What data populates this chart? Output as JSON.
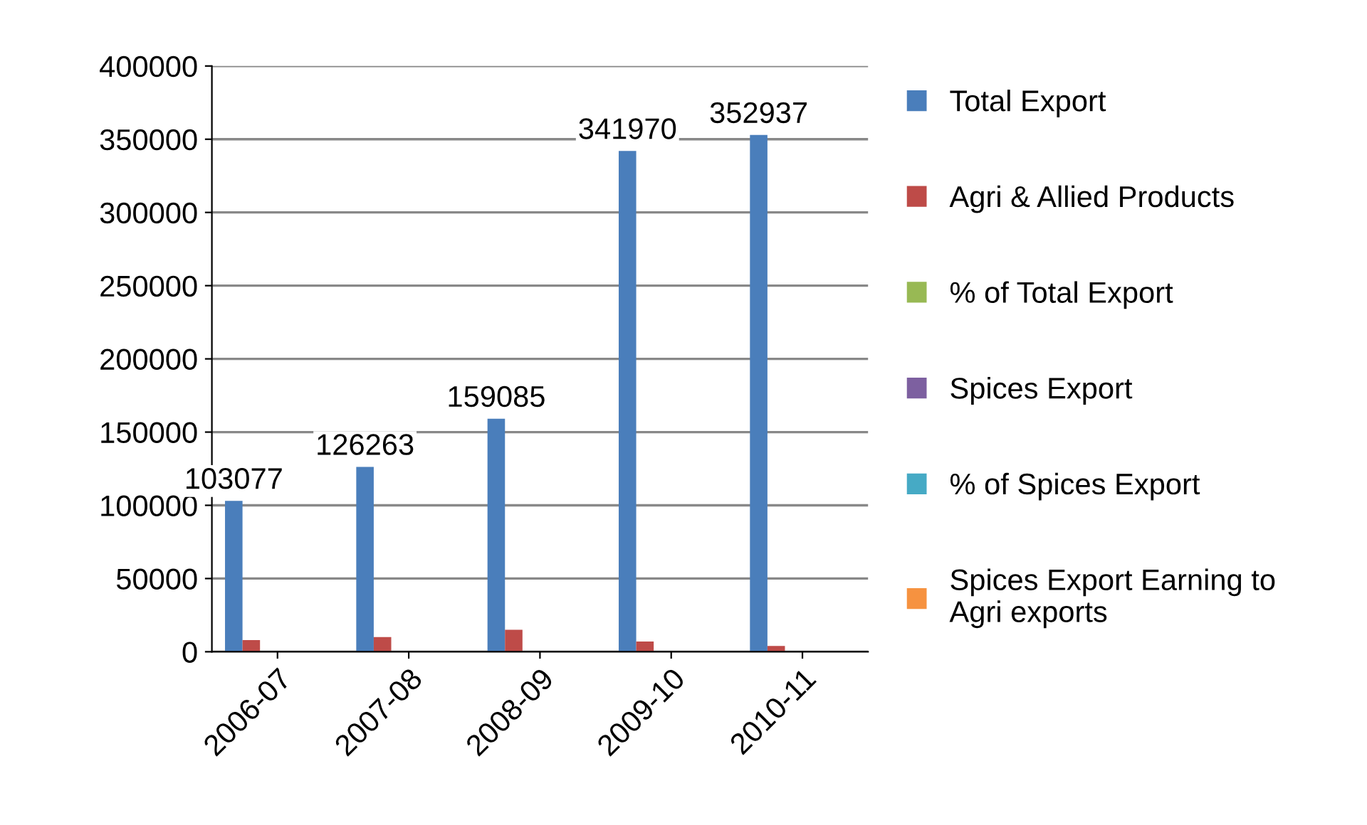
{
  "chart_data": {
    "type": "bar",
    "categories": [
      "2006-07",
      "2007-08",
      "2008-09",
      "2009-10",
      "2010-11"
    ],
    "series": [
      {
        "name": "Total Export",
        "color": "#4a7ebb",
        "values": [
          103077,
          126263,
          159085,
          341970,
          352937
        ],
        "value_labels": [
          "103077",
          "126263",
          "159085",
          "341970",
          "352937"
        ]
      },
      {
        "name": "Agri & Allied Products",
        "color": "#be4b48",
        "values": [
          8000,
          10000,
          15000,
          7000,
          4000
        ]
      },
      {
        "name": "% of Total Export",
        "color": "#98b954",
        "values": [
          0,
          0,
          0,
          0,
          0
        ]
      },
      {
        "name": "Spices Export",
        "color": "#7d60a0",
        "values": [
          0,
          0,
          0,
          0,
          0
        ]
      },
      {
        "name": "% of Spices Export",
        "color": "#46aac5",
        "values": [
          0,
          0,
          0,
          0,
          0
        ]
      },
      {
        "name": "Spices Export Earning to Agri exports",
        "color": "#f69240",
        "values": [
          0,
          0,
          0,
          0,
          0
        ]
      }
    ],
    "ylim": [
      0,
      400000
    ],
    "yticks": [
      0,
      50000,
      100000,
      150000,
      200000,
      250000,
      300000,
      350000,
      400000
    ],
    "grid": "y",
    "legend": "right"
  }
}
